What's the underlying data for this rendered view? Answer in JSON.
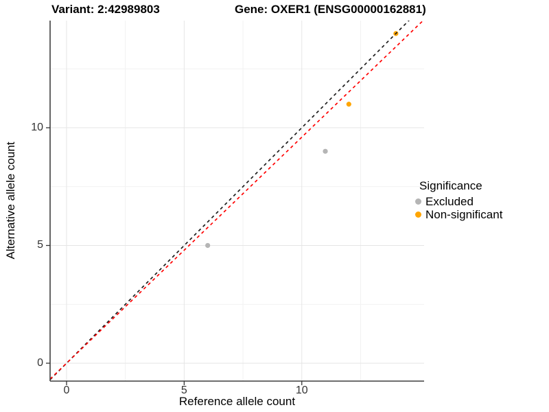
{
  "titles": {
    "variant": "Variant: 2:42989803",
    "gene": "Gene: OXER1 (ENSG00000162881)"
  },
  "axes": {
    "x_label": "Reference allele count",
    "y_label": "Alternative allele count",
    "x_tick_labels": [
      "0",
      "5",
      "10"
    ],
    "y_tick_labels": [
      "0",
      "5",
      "10"
    ]
  },
  "legend": {
    "title": "Significance",
    "items": [
      {
        "label": "Excluded",
        "color": "#b5b5b5"
      },
      {
        "label": "Non-significant",
        "color": "#ffa500"
      }
    ]
  },
  "chart_data": {
    "type": "scatter",
    "title": "Variant: 2:42989803 | Gene: OXER1 (ENSG00000162881)",
    "xlabel": "Reference allele count",
    "ylabel": "Alternative allele count",
    "xlim": [
      -0.7,
      15.2
    ],
    "ylim": [
      -0.76,
      14.55
    ],
    "x_breaks": [
      0,
      5,
      10
    ],
    "y_breaks": [
      0,
      5,
      10
    ],
    "minor_breaks": [
      2.5,
      7.5,
      12.5
    ],
    "grid": true,
    "legend_position": "right",
    "legend_title": "Significance",
    "series": [
      {
        "name": "Excluded",
        "color": "#b5b5b5",
        "points": [
          [
            6,
            5
          ],
          [
            11,
            9
          ]
        ]
      },
      {
        "name": "Non-significant",
        "color": "#ffa500",
        "points": [
          [
            12,
            11
          ],
          [
            14,
            14
          ]
        ]
      }
    ],
    "reference_lines": [
      {
        "name": "identity-line",
        "style": "dashed",
        "color": "#1a1a1a",
        "slope": 1,
        "intercept": 0
      },
      {
        "name": "expected-ratio-line",
        "style": "dashed",
        "color": "#ff0000",
        "slope": 0.96,
        "intercept": 0
      }
    ]
  },
  "style_colors": {
    "background": "#ffffff",
    "grid_major": "#e5e5e5",
    "grid_minor": "#f2f2f2",
    "axis_line": "#3d3d3d",
    "tick_mark": "#333333",
    "tick_text": "#333333"
  }
}
